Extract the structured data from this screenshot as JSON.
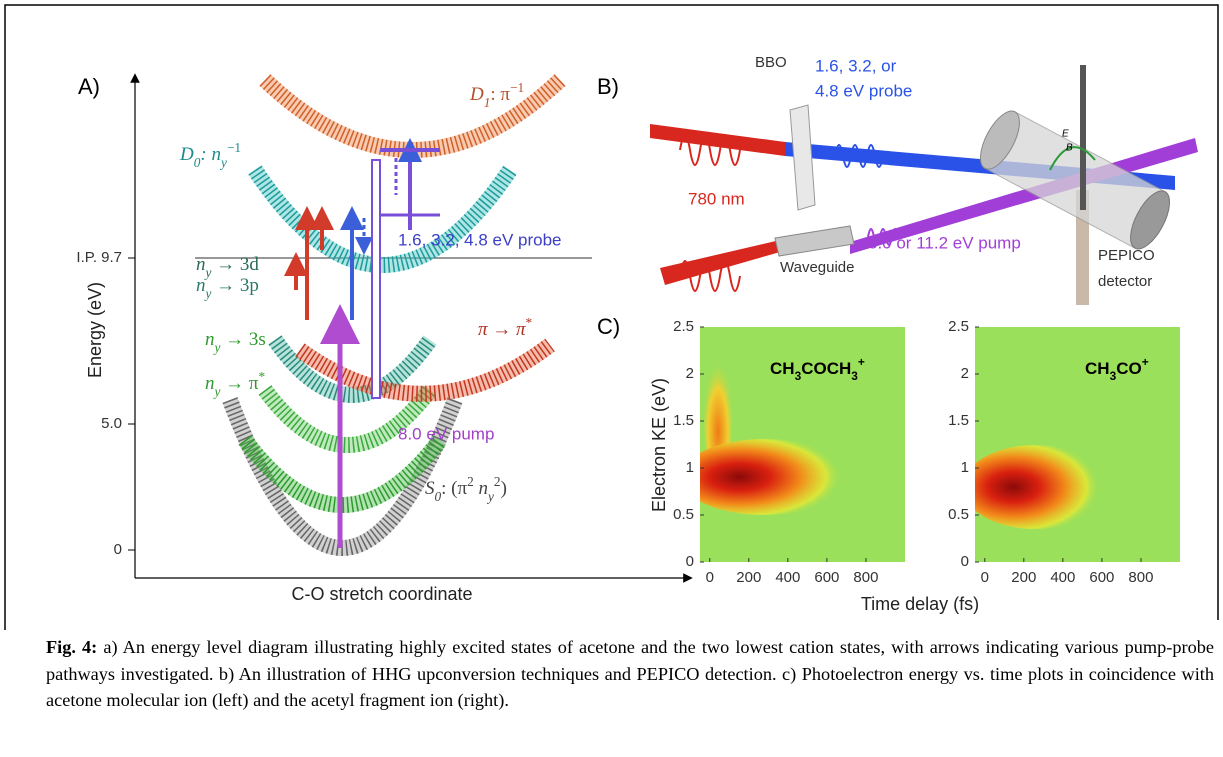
{
  "panel_a": {
    "label": "A)",
    "y_axis_title": "Energy (eV)",
    "x_axis_title": "C-O stretch coordinate",
    "energy_labels": [
      "I.P. 9.7",
      "5.0",
      "0"
    ],
    "states": {
      "d1": [
        "D",
        "1",
        ": π",
        "−1"
      ],
      "d0": [
        "D",
        "0",
        ": n",
        "y",
        "−1"
      ],
      "ny_3d": [
        "n",
        "y",
        " → 3d"
      ],
      "ny_3p": [
        "n",
        "y",
        " → 3p"
      ],
      "pi_pistar": [
        "π → π",
        "*"
      ],
      "ny_3s": [
        "n",
        "y",
        " → 3s"
      ],
      "ny_pistar": [
        "n",
        "y",
        " → π",
        "*"
      ],
      "s0": [
        "S",
        "0",
        ": (π",
        "2",
        " n",
        "y",
        "2",
        ")"
      ]
    },
    "probe_label": "1.6, 3.2, 4.8 eV probe",
    "pump_label": "8.0 eV pump"
  },
  "panel_b": {
    "label": "B)",
    "bbo": "BBO",
    "probe": [
      "1.6, 3.2, or",
      "4.8 eV probe"
    ],
    "wavelength": "780 nm",
    "waveguide": "Waveguide",
    "pump": "8.0 or 11.2 eV pump",
    "detector": [
      "PEPICO",
      "detector"
    ],
    "field": [
      "E",
      "B"
    ]
  },
  "panel_c": {
    "label": "C)",
    "y_axis_title": "Electron KE (eV)",
    "x_axis_title": "Time delay (fs)",
    "plots": [
      {
        "ion": [
          "CH",
          "3",
          "COCH",
          "3",
          "+"
        ]
      },
      {
        "ion": [
          "CH",
          "3",
          "CO",
          "+"
        ]
      }
    ],
    "ylim": [
      0,
      2.5
    ],
    "yticks": [
      0,
      0.5,
      1,
      1.5,
      2,
      2.5
    ],
    "xlim": [
      -50,
      1000
    ],
    "xticks": [
      0,
      200,
      400,
      600,
      800
    ]
  },
  "caption": {
    "label": "Fig. 4:",
    "text": "a) An energy level diagram illustrating highly excited states of acetone and the two lowest cation states, with arrows indicating various pump-probe pathways investigated. b) An illustration of HHG upconversion techniques and PEPICO detection. c) Photoelectron energy vs. time plots in coincidence with acetone molecular ion (left) and the acetyl fragment ion (right)."
  }
}
